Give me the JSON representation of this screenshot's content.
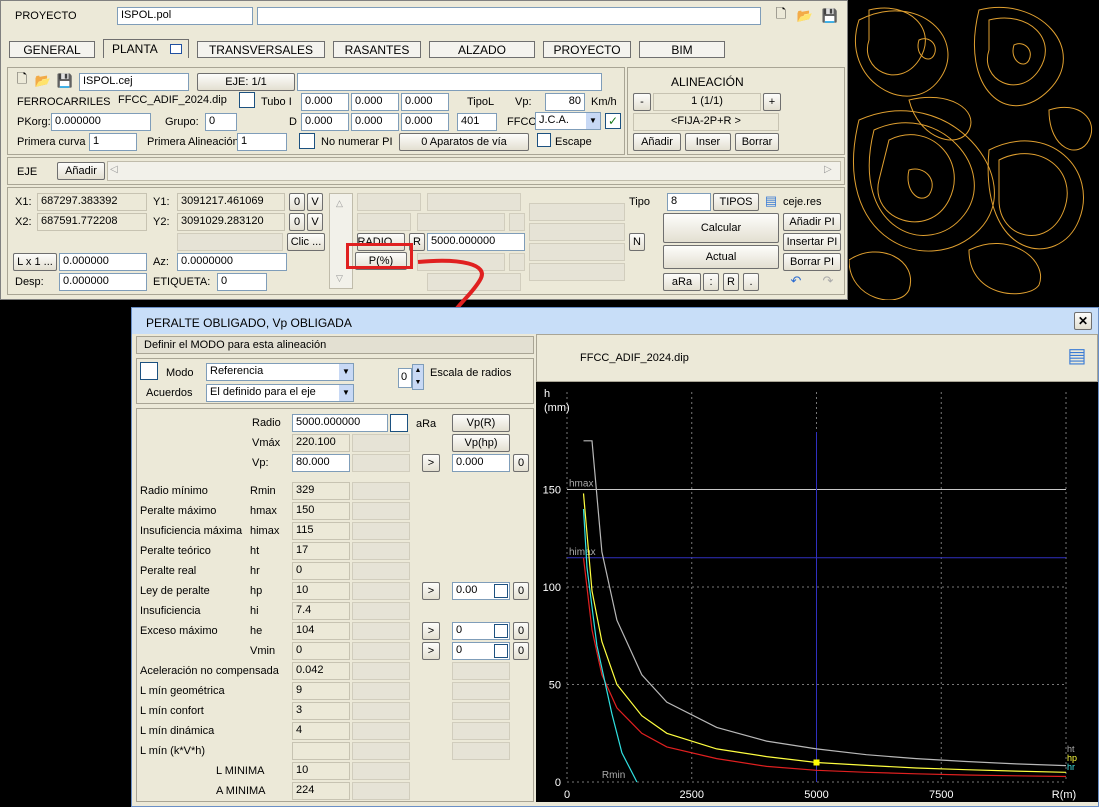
{
  "project": {
    "label": "PROYECTO",
    "file": "ISPOL.pol",
    "icons": [
      "new-file-icon",
      "open-folder-icon",
      "save-icon"
    ]
  },
  "tabs": [
    "GENERAL",
    "PLANTA",
    "TRANSVERSALES",
    "RASANTES",
    "ALZADO",
    "PROYECTO",
    "BIM"
  ],
  "axis_file": {
    "file": "ISPOL.cej",
    "eje_btn": "EJE: 1/1"
  },
  "ferro": {
    "label": "FERROCARRILES",
    "file": "FFCC_ADIF_2024.dip",
    "tubo": "Tubo I",
    "t1": "0.000",
    "t2": "0.000",
    "t3": "0.000",
    "tipol": "TipoL",
    "vp_label": "Vp:",
    "vp": "80",
    "kmh": "Km/h"
  },
  "pk": {
    "label": "PKorg:",
    "value": "0.000000",
    "grupo_label": "Grupo:",
    "grupo": "0",
    "d_label": "D",
    "d1": "0.000",
    "d2": "0.000",
    "d3": "0.000",
    "d4": "401",
    "ffcc_label": "FFCC",
    "ffcc": "J.C.A."
  },
  "curva": {
    "label": "Primera curva",
    "value": "1",
    "alin_label": "Primera Alineación",
    "alin_value": "1",
    "no_num": "No numerar PI",
    "aparatos": "0 Aparatos de vía",
    "escape": "Escape"
  },
  "alineacion": {
    "title": "ALINEACIÓN",
    "minus": "-",
    "value": "1 (1/1)",
    "plus": "+",
    "type": "<FIJA-2P+R >",
    "add": "Añadir",
    "ins": "Inser",
    "del": "Borrar"
  },
  "eje_row": {
    "label": "EJE",
    "add": "Añadir"
  },
  "coords": {
    "x1_label": "X1:",
    "x1": "687297.383392",
    "y1_label": "Y1:",
    "y1": "3091217.461069",
    "x2_label": "X2:",
    "x2": "687591.772208",
    "y2_label": "Y2:",
    "y2": "3091029.283120",
    "zero": "0",
    "v": "V",
    "clic": "Clic ...",
    "lx": "L x 1 ...",
    "lx_val": "0.000000",
    "az_label": "Az:",
    "az": "0.0000000",
    "desp_label": "Desp:",
    "desp": "0.000000",
    "etiq_label": "ETIQUETA:",
    "etiq": "0"
  },
  "radio": {
    "btn": "RADIO ...",
    "r": "R",
    "value": "5000.000000",
    "n": "N",
    "pct": "P(%)"
  },
  "tipo": {
    "label": "Tipo",
    "value": "8",
    "btn": "TIPOS",
    "res": "ceje.res",
    "calc": "Calcular",
    "actual": "Actual",
    "add_pi": "Añadir PI",
    "ins_pi": "Insertar PI",
    "del_pi": "Borrar PI",
    "ara": "aRa",
    "colon": ":",
    "r": "R",
    "dot": "."
  },
  "dialog": {
    "title": "PERALTE OBLIGADO, Vp OBLIGADA",
    "close": "✕",
    "mode_header": "Definir el MODO para esta alineación",
    "modo_label": "Modo",
    "modo": "Referencia",
    "acuerdos_label": "Acuerdos",
    "acuerdos": "El definido para el eje",
    "escala_val": "0",
    "escala_label": "Escala de radios",
    "file": "FFCC_ADIF_2024.dip"
  },
  "params": {
    "radio_label": "Radio",
    "radio": "5000.000000",
    "ara": "aRa",
    "vpr": "Vp(R)",
    "vphp": "Vp(hp)",
    "vmax_label": "Vmáx",
    "vmax": "220.100",
    "vp_label": "Vp:",
    "vp": "80.000",
    "vp_right": "0.000",
    "zero": "0",
    "arrow": ">",
    "rows": [
      {
        "name": "Radio mínimo",
        "sym": "Rmin",
        "val": "329"
      },
      {
        "name": "Peralte máximo",
        "sym": "hmax",
        "val": "150"
      },
      {
        "name": "Insuficiencia máxima",
        "sym": "himax",
        "val": "115"
      },
      {
        "name": "Peralte teórico",
        "sym": "ht",
        "val": "17"
      },
      {
        "name": "Peralte real",
        "sym": "hr",
        "val": "0"
      },
      {
        "name": "Ley de peralte",
        "sym": "hp",
        "val": "10",
        "right": "0.00"
      },
      {
        "name": "Insuficiencia",
        "sym": "hi",
        "val": "7.4"
      },
      {
        "name": "Exceso máximo",
        "sym": "he",
        "val": "104",
        "right": "0"
      },
      {
        "name": "",
        "sym": "Vmin",
        "val": "0",
        "right": "0"
      },
      {
        "name": "Aceleración no compensada",
        "sym": "",
        "val": "0.042"
      },
      {
        "name": "L mín geométrica",
        "sym": "",
        "val": "9"
      },
      {
        "name": "L mín confort",
        "sym": "",
        "val": "3"
      },
      {
        "name": "L mín dinámica",
        "sym": "",
        "val": "4"
      },
      {
        "name": "L mín (k*V*h)",
        "sym": "",
        "val": ""
      },
      {
        "name": "",
        "sym": "L MINIMA",
        "val": "10"
      },
      {
        "name": "",
        "sym": "A MINIMA",
        "val": "224"
      }
    ]
  },
  "chart_data": {
    "type": "line",
    "ylabel": "h\n(mm)",
    "xlabel": "R(m)",
    "xlim": [
      0,
      10000
    ],
    "ylim": [
      0,
      200
    ],
    "x_ticks": [
      "0",
      "2500",
      "5000",
      "7500"
    ],
    "y_ticks": [
      "0",
      "50",
      "100",
      "150"
    ],
    "hlines": [
      {
        "name": "hmax",
        "y": 150
      },
      {
        "name": "himax",
        "y": 115
      }
    ],
    "vline": {
      "name": "R",
      "x": 5000
    },
    "rmin_label": "Rmin",
    "marker": {
      "x": 5000,
      "y": 10
    },
    "end_labels": [
      "ht",
      "hp",
      "hr"
    ],
    "series": [
      {
        "color": "#ffff40",
        "x": [
          330,
          500,
          700,
          1000,
          1500,
          2000,
          3000,
          4000,
          5000,
          6000,
          7000,
          8000,
          9000,
          10000
        ],
        "values": [
          148,
          98,
          72,
          50,
          34,
          25,
          17,
          13,
          10,
          8.5,
          7.2,
          6.3,
          5.6,
          5
        ]
      },
      {
        "color": "#e02020",
        "x": [
          330,
          500,
          700,
          1000,
          1500,
          2000,
          3000,
          4000,
          5000,
          6000,
          7000,
          8000,
          9000,
          10000
        ],
        "values": [
          115,
          78,
          55,
          38,
          25,
          18,
          12,
          8,
          6,
          5,
          4.2,
          3.6,
          3.2,
          2.8
        ]
      },
      {
        "color": "#b8b8b8",
        "x": [
          330,
          500,
          700,
          1000,
          1500,
          2000,
          3000,
          4000,
          5000,
          6000,
          7000,
          8000,
          9000,
          10000
        ],
        "values": [
          175,
          175,
          118,
          83,
          55,
          41,
          28,
          21,
          17,
          14,
          12,
          10.5,
          9.3,
          8.4
        ]
      },
      {
        "color": "#30e0e0",
        "x": [
          330,
          400,
          600,
          900,
          1100,
          1400
        ],
        "values": [
          140,
          110,
          70,
          35,
          15,
          0
        ]
      }
    ],
    "colors": {
      "hmax": "#c8c8c8",
      "himax": "#3030c0",
      "marker": "#ffff00"
    }
  }
}
